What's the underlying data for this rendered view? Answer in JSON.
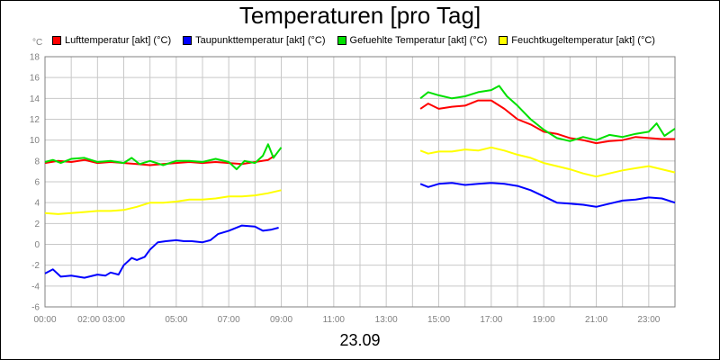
{
  "chart_data": {
    "type": "line",
    "title": "Temperaturen [pro Tag]",
    "ylabel": "°C",
    "xlabel": "23.09",
    "ylim": [
      -6,
      18
    ],
    "xlim": [
      0,
      24
    ],
    "y_ticks": [
      "-6",
      "-4",
      "-2",
      "0",
      "2",
      "4",
      "6",
      "8",
      "10",
      "12",
      "14",
      "16",
      "18"
    ],
    "x_ticks": [
      "00:00",
      "02:00 03:00",
      "05:00",
      "07:00",
      "09:00",
      "11:00",
      "13:00",
      "15:00",
      "17:00",
      "19:00",
      "21:00",
      "23:00"
    ],
    "grid": true,
    "legend_position": "top",
    "series": [
      {
        "name": "Lufttemperatur [akt] (°C)",
        "color": "#ff0000",
        "points": [
          [
            0,
            7.8
          ],
          [
            0.5,
            8.0
          ],
          [
            1,
            7.9
          ],
          [
            1.5,
            8.1
          ],
          [
            2,
            7.8
          ],
          [
            2.5,
            7.9
          ],
          [
            3,
            7.8
          ],
          [
            3.5,
            7.7
          ],
          [
            4,
            7.6
          ],
          [
            4.5,
            7.7
          ],
          [
            5,
            7.8
          ],
          [
            5.5,
            7.9
          ],
          [
            6,
            7.8
          ],
          [
            6.5,
            7.9
          ],
          [
            7,
            7.8
          ],
          [
            7.5,
            7.7
          ],
          [
            8,
            7.9
          ],
          [
            8.5,
            8.1
          ],
          [
            8.75,
            8.5
          ],
          [
            null,
            null
          ],
          [
            14.3,
            13.0
          ],
          [
            14.6,
            13.5
          ],
          [
            15,
            13.0
          ],
          [
            15.5,
            13.2
          ],
          [
            16,
            13.3
          ],
          [
            16.5,
            13.8
          ],
          [
            17,
            13.8
          ],
          [
            17.5,
            13.0
          ],
          [
            18,
            12.0
          ],
          [
            18.5,
            11.5
          ],
          [
            19,
            10.8
          ],
          [
            19.5,
            10.6
          ],
          [
            20,
            10.2
          ],
          [
            20.5,
            10.0
          ],
          [
            21,
            9.7
          ],
          [
            21.5,
            9.9
          ],
          [
            22,
            10.0
          ],
          [
            22.5,
            10.3
          ],
          [
            23,
            10.2
          ],
          [
            23.5,
            10.1
          ],
          [
            24,
            10.1
          ]
        ]
      },
      {
        "name": "Taupunkttemperatur [akt] (°C)",
        "color": "#0000ff",
        "points": [
          [
            0,
            -2.8
          ],
          [
            0.3,
            -2.4
          ],
          [
            0.6,
            -3.1
          ],
          [
            1,
            -3.0
          ],
          [
            1.5,
            -3.2
          ],
          [
            2,
            -2.9
          ],
          [
            2.3,
            -3.0
          ],
          [
            2.5,
            -2.7
          ],
          [
            2.8,
            -2.9
          ],
          [
            3,
            -2.0
          ],
          [
            3.3,
            -1.3
          ],
          [
            3.5,
            -1.5
          ],
          [
            3.8,
            -1.2
          ],
          [
            4,
            -0.5
          ],
          [
            4.3,
            0.2
          ],
          [
            4.6,
            0.3
          ],
          [
            5,
            0.4
          ],
          [
            5.3,
            0.3
          ],
          [
            5.6,
            0.3
          ],
          [
            6,
            0.2
          ],
          [
            6.3,
            0.4
          ],
          [
            6.6,
            1.0
          ],
          [
            7,
            1.3
          ],
          [
            7.5,
            1.8
          ],
          [
            8,
            1.7
          ],
          [
            8.3,
            1.3
          ],
          [
            8.6,
            1.4
          ],
          [
            8.9,
            1.6
          ],
          [
            null,
            null
          ],
          [
            14.3,
            5.8
          ],
          [
            14.6,
            5.5
          ],
          [
            15,
            5.8
          ],
          [
            15.5,
            5.9
          ],
          [
            16,
            5.7
          ],
          [
            16.5,
            5.8
          ],
          [
            17,
            5.9
          ],
          [
            17.5,
            5.8
          ],
          [
            18,
            5.6
          ],
          [
            18.5,
            5.2
          ],
          [
            19,
            4.6
          ],
          [
            19.5,
            4.0
          ],
          [
            20,
            3.9
          ],
          [
            20.5,
            3.8
          ],
          [
            21,
            3.6
          ],
          [
            21.5,
            3.9
          ],
          [
            22,
            4.2
          ],
          [
            22.5,
            4.3
          ],
          [
            23,
            4.5
          ],
          [
            23.5,
            4.4
          ],
          [
            24,
            4.0
          ]
        ]
      },
      {
        "name": "Gefuehlte Temperatur [akt] (°C)",
        "color": "#00e000",
        "points": [
          [
            0,
            7.9
          ],
          [
            0.3,
            8.1
          ],
          [
            0.6,
            7.8
          ],
          [
            1,
            8.2
          ],
          [
            1.5,
            8.3
          ],
          [
            2,
            7.9
          ],
          [
            2.5,
            8.0
          ],
          [
            3,
            7.8
          ],
          [
            3.3,
            8.3
          ],
          [
            3.6,
            7.7
          ],
          [
            4,
            8.0
          ],
          [
            4.5,
            7.6
          ],
          [
            5,
            8.0
          ],
          [
            5.5,
            8.0
          ],
          [
            6,
            7.9
          ],
          [
            6.5,
            8.2
          ],
          [
            7,
            7.9
          ],
          [
            7.3,
            7.2
          ],
          [
            7.6,
            8.0
          ],
          [
            8,
            7.8
          ],
          [
            8.3,
            8.5
          ],
          [
            8.5,
            9.6
          ],
          [
            8.7,
            8.3
          ],
          [
            9,
            9.3
          ],
          [
            null,
            null
          ],
          [
            14.3,
            14.0
          ],
          [
            14.6,
            14.6
          ],
          [
            15,
            14.3
          ],
          [
            15.5,
            14.0
          ],
          [
            16,
            14.2
          ],
          [
            16.5,
            14.6
          ],
          [
            17,
            14.8
          ],
          [
            17.3,
            15.2
          ],
          [
            17.6,
            14.2
          ],
          [
            18,
            13.3
          ],
          [
            18.5,
            12.0
          ],
          [
            19,
            11.0
          ],
          [
            19.5,
            10.2
          ],
          [
            20,
            9.9
          ],
          [
            20.5,
            10.3
          ],
          [
            21,
            10.0
          ],
          [
            21.5,
            10.5
          ],
          [
            22,
            10.3
          ],
          [
            22.5,
            10.6
          ],
          [
            23,
            10.8
          ],
          [
            23.3,
            11.6
          ],
          [
            23.6,
            10.4
          ],
          [
            24,
            11.1
          ]
        ]
      },
      {
        "name": "Feuchtkugeltemperatur [akt] (°C)",
        "color": "#ffff00",
        "points": [
          [
            0,
            3.0
          ],
          [
            0.5,
            2.9
          ],
          [
            1,
            3.0
          ],
          [
            1.5,
            3.1
          ],
          [
            2,
            3.2
          ],
          [
            2.5,
            3.2
          ],
          [
            3,
            3.3
          ],
          [
            3.5,
            3.6
          ],
          [
            4,
            4.0
          ],
          [
            4.5,
            4.0
          ],
          [
            5,
            4.1
          ],
          [
            5.5,
            4.3
          ],
          [
            6,
            4.3
          ],
          [
            6.5,
            4.4
          ],
          [
            7,
            4.6
          ],
          [
            7.5,
            4.6
          ],
          [
            8,
            4.7
          ],
          [
            8.5,
            4.9
          ],
          [
            9,
            5.2
          ],
          [
            null,
            null
          ],
          [
            14.3,
            9.0
          ],
          [
            14.6,
            8.7
          ],
          [
            15,
            8.9
          ],
          [
            15.5,
            8.9
          ],
          [
            16,
            9.1
          ],
          [
            16.5,
            9.0
          ],
          [
            17,
            9.3
          ],
          [
            17.5,
            9.0
          ],
          [
            18,
            8.6
          ],
          [
            18.5,
            8.3
          ],
          [
            19,
            7.8
          ],
          [
            19.5,
            7.5
          ],
          [
            20,
            7.2
          ],
          [
            20.5,
            6.8
          ],
          [
            21,
            6.5
          ],
          [
            21.5,
            6.8
          ],
          [
            22,
            7.1
          ],
          [
            22.5,
            7.3
          ],
          [
            23,
            7.5
          ],
          [
            23.5,
            7.2
          ],
          [
            24,
            6.9
          ]
        ]
      }
    ]
  }
}
